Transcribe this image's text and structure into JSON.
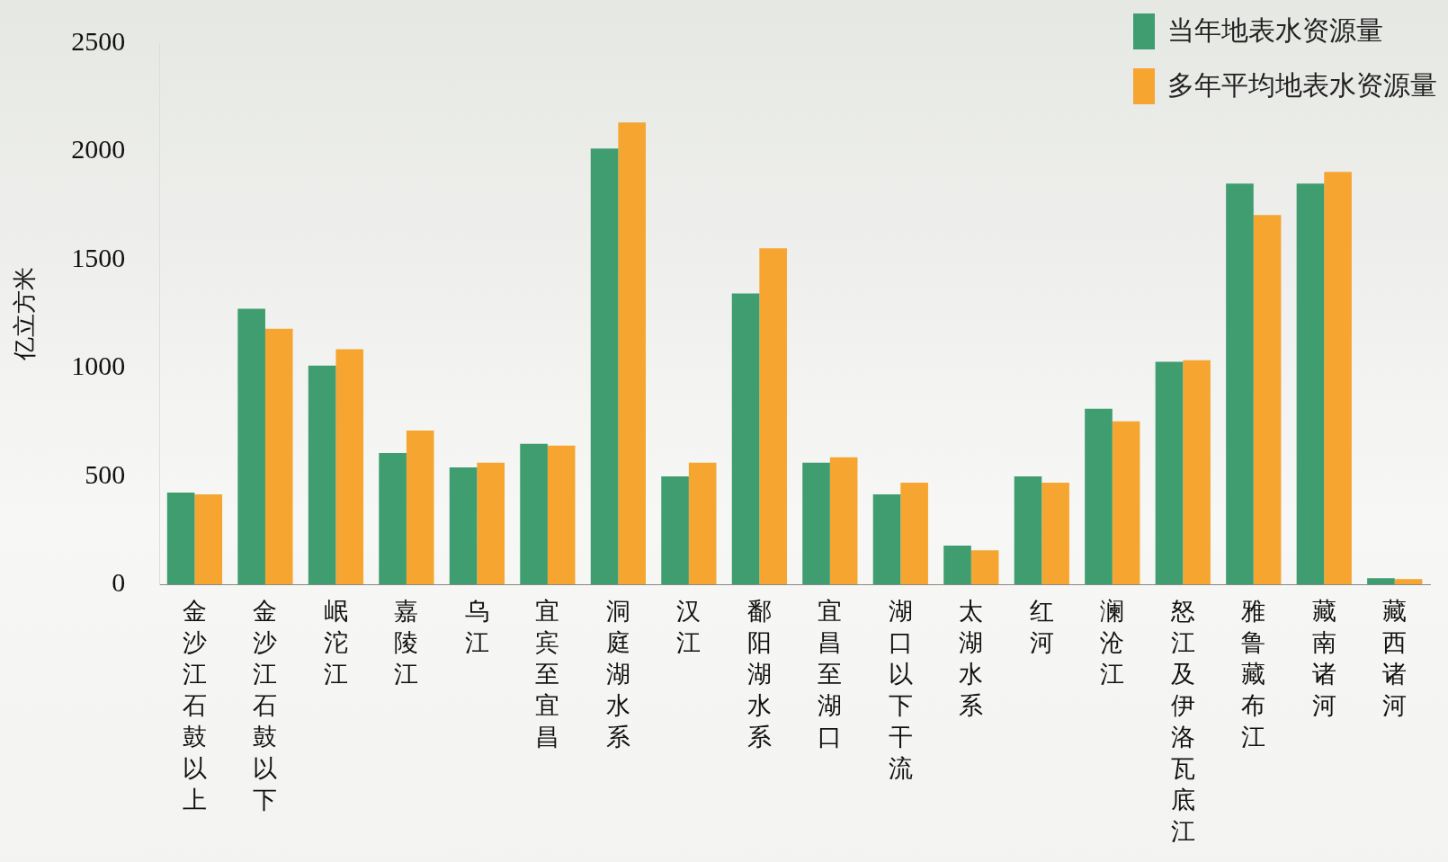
{
  "chart_data": {
    "type": "bar",
    "ylabel": "亿立方米",
    "categories": [
      "金沙江石鼓以上",
      "金沙江石鼓以下",
      "岷沱江",
      "嘉陵江",
      "乌江",
      "宜宾至宜昌",
      "洞庭湖水系",
      "汉江",
      "鄱阳湖水系",
      "宜昌至湖口",
      "湖口以下干流",
      "太湖水系",
      "红河",
      "澜沧江",
      "怒江及伊洛瓦底江",
      "雅鲁藏布江",
      "藏南诸河",
      "藏西诸河"
    ],
    "series": [
      {
        "name": "当年地表水资源量",
        "color": "#3f9d6f",
        "values": [
          424,
          1273,
          1011,
          607,
          541,
          649,
          2013,
          499,
          1344,
          562,
          416,
          179,
          499,
          811,
          1028,
          1851,
          1851,
          29
        ]
      },
      {
        "name": "多年平均地表水资源量",
        "color": "#f5a530",
        "values": [
          416,
          1181,
          1086,
          711,
          562,
          641,
          2134,
          562,
          1552,
          587,
          470,
          158,
          470,
          753,
          1036,
          1706,
          1905,
          25
        ]
      }
    ],
    "ylim": [
      0,
      2500
    ],
    "yticks": [
      0,
      500,
      1000,
      1500,
      2000,
      2500
    ],
    "grid": false,
    "legend": "top right"
  }
}
